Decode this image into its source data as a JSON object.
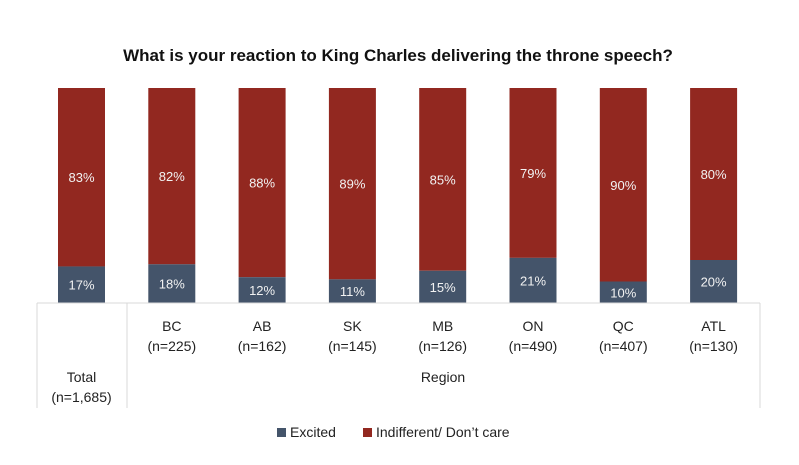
{
  "chart_data": {
    "type": "bar",
    "stacked": true,
    "percent_stacked": true,
    "title": "What is your reaction to King Charles delivering the throne speech?",
    "xlabel": "",
    "ylabel": "",
    "ylim": [
      0,
      100
    ],
    "grid": false,
    "legend_position": "bottom",
    "groups": [
      {
        "label": "Total",
        "categories": [
          "Total (n=1,685)"
        ]
      },
      {
        "label": "Region",
        "categories": [
          "BC (n=225)",
          "AB (n=162)",
          "SK (n=145)",
          "MB (n=126)",
          "ON (n=490)",
          "QC (n=407)",
          "ATL (n=130)"
        ]
      }
    ],
    "categories": [
      {
        "name": "Total",
        "n": "(n=1,685)"
      },
      {
        "name": "BC",
        "n": "(n=225)"
      },
      {
        "name": "AB",
        "n": "(n=162)"
      },
      {
        "name": "SK",
        "n": "(n=145)"
      },
      {
        "name": "MB",
        "n": "(n=126)"
      },
      {
        "name": "ON",
        "n": "(n=490)"
      },
      {
        "name": "QC",
        "n": "(n=407)"
      },
      {
        "name": "ATL",
        "n": "(n=130)"
      }
    ],
    "series": [
      {
        "name": "Excited",
        "color": "#44546a",
        "values": [
          17,
          18,
          12,
          11,
          15,
          21,
          10,
          20
        ]
      },
      {
        "name": "Indifferent/ Don’t care",
        "color": "#922820",
        "values": [
          83,
          82,
          88,
          89,
          85,
          79,
          90,
          80
        ]
      }
    ],
    "group_label_region": "Region"
  }
}
